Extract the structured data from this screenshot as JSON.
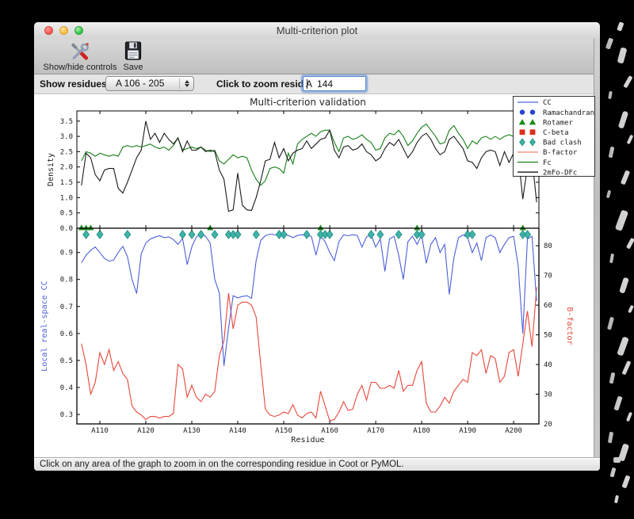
{
  "window": {
    "title": "Multi-criterion plot"
  },
  "toolbar": {
    "show_hide_label": "Show/hide controls",
    "save_label": "Save"
  },
  "controls": {
    "show_residues_label": "Show residues:",
    "residue_range_value": "A 106 - 205",
    "zoom_residue_label": "Click to zoom residue:",
    "zoom_residue_value": "A  144",
    "focus_ring_color": "#5a85c8"
  },
  "status_bar": {
    "message": "Click on any area of the graph to zoom in on the corresponding residue in Coot or PyMOL."
  },
  "chart_data": {
    "type": "line",
    "title": "Multi-criterion validation",
    "x_axis": {
      "xlabel": "Residue",
      "residue_start": 106,
      "residue_end": 205,
      "xlim": [
        105,
        205.5
      ],
      "tick_residues": [
        110,
        120,
        130,
        140,
        150,
        160,
        170,
        180,
        190,
        200
      ],
      "tick_labels": [
        "A110",
        "A120",
        "A130",
        "A140",
        "A150",
        "A160",
        "A170",
        "A180",
        "A190",
        "A200"
      ]
    },
    "top_plot": {
      "ylabel": "Density",
      "ylim": [
        0,
        3.83
      ],
      "yticks": [
        0.0,
        0.5,
        1.0,
        1.5,
        2.0,
        2.5,
        3.0,
        3.5
      ],
      "series": [
        {
          "name": "Fc",
          "color": "#168016",
          "values": [
            2.2,
            2.5,
            2.45,
            2.35,
            2.45,
            2.4,
            2.35,
            2.4,
            2.35,
            2.65,
            2.7,
            2.65,
            2.7,
            2.65,
            2.7,
            2.75,
            2.65,
            2.6,
            2.65,
            2.55,
            2.7,
            2.95,
            2.55,
            2.6,
            2.65,
            2.6,
            2.65,
            2.55,
            2.5,
            2.55,
            2.2,
            2.1,
            2.25,
            2.4,
            2.3,
            2.35,
            2.3,
            1.9,
            1.6,
            1.4,
            1.55,
            1.95,
            2.0,
            1.95,
            1.8,
            2.45,
            2.1,
            2.75,
            2.9,
            3.0,
            3.1,
            3.0,
            3.15,
            3.2,
            3.2,
            2.8,
            2.5,
            2.95,
            3.0,
            2.9,
            2.95,
            3.05,
            2.9,
            2.8,
            2.55,
            2.6,
            2.95,
            3.1,
            3.05,
            3.2,
            3.0,
            2.7,
            2.85,
            3.1,
            3.3,
            3.4,
            3.2,
            3.0,
            2.75,
            2.8,
            3.2,
            3.35,
            3.1,
            2.9,
            2.6,
            2.85,
            2.75,
            2.95,
            3.0,
            2.9,
            3.0,
            2.9,
            3.0,
            3.05,
            3.0,
            2.9,
            2.75,
            2.35,
            2.45,
            2.5
          ]
        },
        {
          "name": "2mFo-DFc",
          "color": "#1a1a1a",
          "values": [
            1.4,
            2.45,
            2.3,
            1.75,
            1.55,
            1.9,
            1.95,
            1.95,
            1.3,
            1.15,
            1.5,
            1.9,
            2.3,
            2.55,
            3.5,
            2.9,
            3.1,
            2.8,
            3.1,
            2.9,
            2.75,
            2.95,
            2.5,
            2.85,
            2.55,
            2.55,
            2.65,
            2.5,
            2.55,
            2.5,
            1.9,
            1.6,
            0.55,
            0.6,
            1.8,
            0.75,
            0.6,
            0.58,
            1.0,
            1.55,
            2.2,
            2.25,
            2.8,
            2.3,
            2.6,
            2.2,
            2.45,
            2.55,
            2.6,
            2.85,
            2.6,
            2.75,
            2.9,
            2.95,
            3.2,
            2.55,
            2.3,
            2.65,
            2.7,
            2.55,
            2.6,
            2.75,
            2.5,
            2.4,
            2.2,
            2.3,
            2.6,
            2.8,
            2.7,
            2.9,
            2.6,
            2.3,
            2.5,
            2.8,
            3.0,
            3.1,
            2.9,
            2.6,
            2.4,
            2.5,
            2.9,
            3.0,
            2.8,
            2.6,
            2.2,
            2.15,
            1.95,
            2.3,
            2.5,
            2.55,
            2.5,
            2.05,
            2.5,
            2.15,
            2.45,
            2.4,
            0.95,
            2.0,
            2.3,
            0.85
          ]
        }
      ]
    },
    "bottom_plot": {
      "ylabel_left": "Local real-space CC",
      "ylabel_left_color": "#4d5fd9",
      "ylim_left": [
        0.265,
        0.99
      ],
      "yticks_left": [
        0.3,
        0.4,
        0.5,
        0.6,
        0.7,
        0.8,
        0.9
      ],
      "ylabel_right": "B-factor",
      "ylabel_right_color": "#e2483a",
      "ylim_right": [
        20,
        85.9
      ],
      "yticks_right": [
        20,
        30,
        40,
        50,
        60,
        70,
        80
      ],
      "series": [
        {
          "name": "CC",
          "axis": "left",
          "color": "#4d5fd9",
          "values": [
            0.862,
            0.89,
            0.908,
            0.92,
            0.9,
            0.878,
            0.868,
            0.872,
            0.9,
            0.923,
            0.885,
            0.8,
            0.748,
            0.895,
            0.935,
            0.95,
            0.957,
            0.962,
            0.955,
            0.958,
            0.948,
            0.93,
            0.952,
            0.855,
            0.92,
            0.958,
            0.966,
            0.96,
            0.935,
            0.8,
            0.75,
            0.48,
            0.62,
            0.74,
            0.732,
            0.737,
            0.74,
            0.73,
            0.87,
            0.945,
            0.962,
            0.968,
            0.966,
            0.965,
            0.968,
            0.963,
            0.955,
            0.963,
            0.966,
            0.962,
            0.96,
            0.89,
            0.96,
            0.94,
            0.9,
            0.87,
            0.94,
            0.965,
            0.962,
            0.966,
            0.963,
            0.92,
            0.958,
            0.965,
            0.92,
            0.95,
            0.83,
            0.95,
            0.96,
            0.89,
            0.8,
            0.94,
            0.96,
            0.93,
            0.965,
            0.86,
            0.93,
            0.955,
            0.9,
            0.93,
            0.745,
            0.88,
            0.955,
            0.965,
            0.955,
            0.9,
            0.935,
            0.87,
            0.955,
            0.965,
            0.955,
            0.9,
            0.93,
            0.955,
            0.96,
            0.85,
            0.6,
            0.95,
            0.96,
            0.72
          ]
        },
        {
          "name": "B-factor",
          "axis": "right",
          "color": "#e8473a",
          "values": [
            47,
            40,
            30,
            34,
            44,
            40,
            45,
            38,
            41,
            37,
            35,
            26,
            24,
            23,
            21.5,
            22.5,
            22.5,
            22,
            22.5,
            22.5,
            23.5,
            40,
            38.5,
            29,
            33,
            29,
            27.5,
            30,
            29,
            31,
            43,
            48,
            64,
            52,
            60,
            61,
            61,
            60,
            56,
            40,
            25,
            23,
            22.5,
            23,
            24,
            23.5,
            26.5,
            23,
            22,
            23.5,
            24,
            22,
            31,
            26,
            21,
            21.5,
            24,
            27.5,
            24.5,
            25,
            30,
            33,
            28,
            34,
            34,
            32,
            32,
            33,
            32,
            38,
            31,
            33,
            33,
            38,
            41,
            27,
            24,
            24,
            26,
            29,
            27,
            31,
            33,
            35,
            34,
            44,
            43,
            45,
            37,
            43,
            42,
            34,
            36,
            44,
            45,
            36,
            47,
            58,
            46,
            66
          ]
        }
      ],
      "markers": [
        {
          "name": "Rotamer",
          "shape": "triangle",
          "color": "#178a17",
          "residues": [
            106,
            107,
            108,
            134,
            158,
            179,
            202
          ]
        },
        {
          "name": "Bad clash",
          "shape": "diamond",
          "color": "#3fb3a7",
          "edge_color": "#1f8c82",
          "residues": [
            107,
            110,
            116,
            128,
            130,
            132,
            135,
            138,
            139,
            140,
            144,
            149,
            150,
            155,
            158,
            159,
            160,
            169,
            171,
            175,
            179,
            180,
            190,
            191,
            202,
            203
          ]
        }
      ]
    },
    "legend": {
      "position": "upper right",
      "entries": [
        {
          "label": "CC",
          "glyph": "line",
          "color": "#4d5fd9"
        },
        {
          "label": "Ramachandran",
          "glyph": "circles",
          "color": "#2743d0"
        },
        {
          "label": "Rotamer",
          "glyph": "triangles",
          "color": "#178a17"
        },
        {
          "label": "C-beta",
          "glyph": "squares",
          "color": "#dd2f1e"
        },
        {
          "label": "Bad clash",
          "glyph": "diamonds",
          "color": "#3fb3a7"
        },
        {
          "label": "B-factor",
          "glyph": "line",
          "color": "#f0806e"
        },
        {
          "label": "Fc",
          "glyph": "line",
          "color": "#168016"
        },
        {
          "label": "2mFo-DFc",
          "glyph": "line",
          "color": "#1a1a1a"
        }
      ]
    }
  }
}
